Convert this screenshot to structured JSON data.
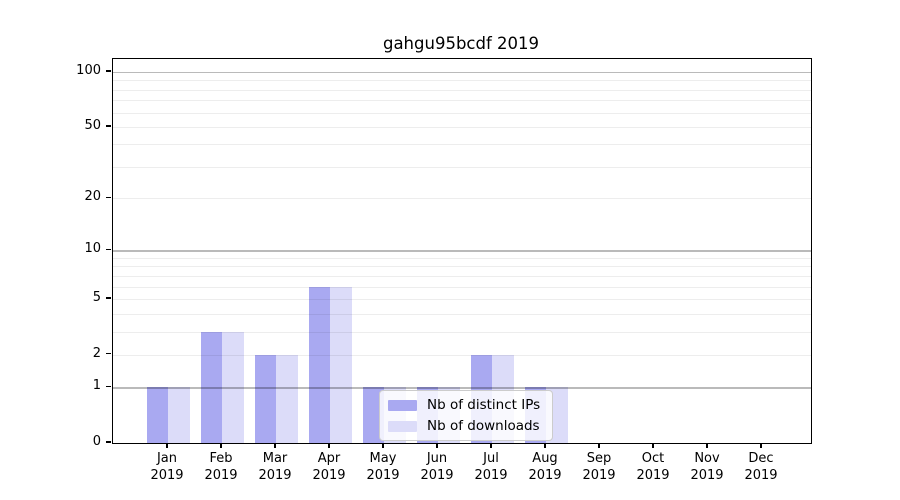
{
  "chart_data": {
    "type": "bar",
    "title": "gahgu95bcdf 2019",
    "categories": [
      "Jan 2019",
      "Feb 2019",
      "Mar 2019",
      "Apr 2019",
      "May 2019",
      "Jun 2019",
      "Jul 2019",
      "Aug 2019",
      "Sep 2019",
      "Oct 2019",
      "Nov 2019",
      "Dec 2019"
    ],
    "series": [
      {
        "name": "Nb of distinct IPs",
        "color": "#a9a9f1",
        "values": [
          1,
          3,
          2,
          6,
          1,
          1,
          2,
          1,
          0,
          0,
          0,
          0
        ]
      },
      {
        "name": "Nb of downloads",
        "color": "#dcdcf9",
        "values": [
          1,
          3,
          2,
          6,
          1,
          1,
          2,
          1,
          0,
          0,
          0,
          0
        ]
      }
    ],
    "xlabel": "",
    "ylabel": "",
    "y_scale": "log10(1+x)",
    "y_ticks": [
      0,
      1,
      2,
      5,
      10,
      20,
      50,
      100
    ],
    "y_major_gridlines": [
      1,
      10,
      100
    ],
    "y_minor_gridlines": [
      2,
      3,
      4,
      5,
      6,
      7,
      8,
      9,
      20,
      30,
      40,
      50,
      60,
      70,
      80,
      90
    ],
    "ylim": [
      0,
      118
    ],
    "grid": "horizontal",
    "legend_position": "inside-bottom-center"
  },
  "colors": {
    "grid_minor": "rgba(0,0,0,0.07)",
    "grid_major": "rgba(0,0,0,0.27)",
    "spine": "#000000",
    "background": "#ffffff"
  }
}
